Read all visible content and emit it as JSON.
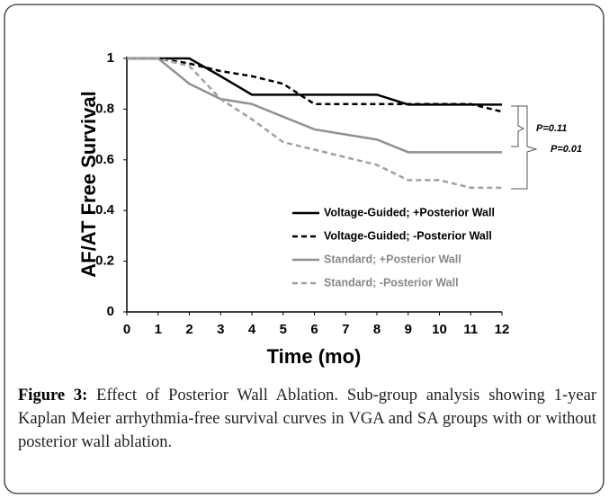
{
  "chart_data": {
    "type": "line",
    "xlabel": "Time (mo)",
    "ylabel": "AF/AT Free Survival",
    "x": [
      0,
      1,
      2,
      3,
      4,
      5,
      6,
      7,
      8,
      9,
      10,
      11,
      12
    ],
    "series": [
      {
        "name": "Voltage-Guided; +Posterior Wall",
        "color": "#000000",
        "dashed": false,
        "values": [
          1,
          1,
          1,
          0.93,
          0.857,
          0.857,
          0.857,
          0.857,
          0.857,
          0.818,
          0.818,
          0.818,
          0.818
        ]
      },
      {
        "name": "Voltage-Guided; -Posterior Wall",
        "color": "#000000",
        "dashed": true,
        "values": [
          1,
          1,
          0.98,
          0.95,
          0.93,
          0.9,
          0.82,
          0.82,
          0.82,
          0.82,
          0.82,
          0.82,
          0.79
        ]
      },
      {
        "name": "Standard; +Posterior Wall",
        "color": "#909090",
        "dashed": false,
        "values": [
          1,
          1,
          0.9,
          0.84,
          0.82,
          0.77,
          0.72,
          0.7,
          0.68,
          0.63,
          0.63,
          0.63,
          0.63
        ]
      },
      {
        "name": "Standard; -Posterior Wall",
        "color": "#a0a0a0",
        "dashed": true,
        "values": [
          1,
          1,
          0.97,
          0.84,
          0.76,
          0.67,
          0.64,
          0.61,
          0.58,
          0.52,
          0.52,
          0.49,
          0.49
        ]
      }
    ],
    "xlim": [
      0,
      12
    ],
    "xticks": [
      0,
      1,
      2,
      3,
      4,
      5,
      6,
      7,
      8,
      9,
      10,
      11,
      12
    ],
    "ylim": [
      0,
      1
    ],
    "yticks": [
      0,
      0.2,
      0.4,
      0.6,
      0.8,
      1
    ],
    "grid": false,
    "legend": "lower right",
    "annotations": [
      "P=0.11",
      "P=0.01"
    ]
  },
  "caption": {
    "label": "Figure 3:",
    "text": " Effect of Posterior Wall Ablation. Sub-group analysis showing 1-year Kaplan Meier arrhythmia-free survival curves in VGA and SA groups with or without posterior wall ablation."
  }
}
